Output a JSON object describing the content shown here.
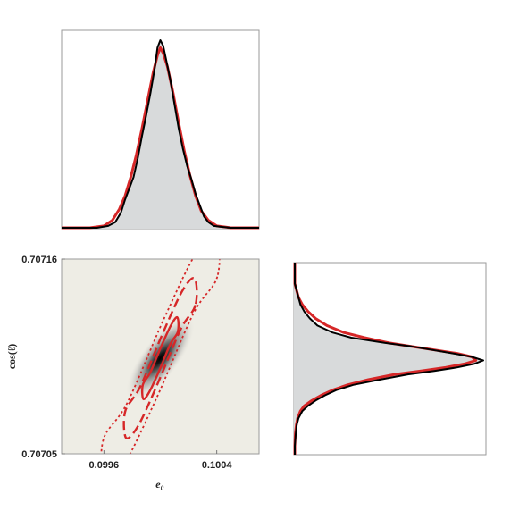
{
  "chart_data": [
    {
      "type": "area",
      "panel": "marginal-e0",
      "x_range": [
        0.0993,
        0.1007
      ],
      "series": [
        {
          "color": "#000000",
          "fill": "#d8dadb",
          "x": [
            0.0993,
            0.09955,
            0.09963,
            0.09968,
            0.09972,
            0.09975,
            0.09978,
            0.09981,
            0.09984,
            0.09987,
            0.0999,
            0.09993,
            0.09996,
            0.09998,
            0.1,
            0.10002,
            0.10004,
            0.10007,
            0.1001,
            0.10013,
            0.10016,
            0.10019,
            0.10022,
            0.10025,
            0.10028,
            0.10031,
            0.10034,
            0.10038,
            0.10043,
            0.1005,
            0.1007
          ],
          "y": [
            0.0,
            0.0,
            0.01,
            0.03,
            0.08,
            0.15,
            0.21,
            0.27,
            0.37,
            0.49,
            0.6,
            0.72,
            0.85,
            0.96,
            1.0,
            0.97,
            0.9,
            0.79,
            0.66,
            0.53,
            0.42,
            0.33,
            0.26,
            0.18,
            0.12,
            0.06,
            0.03,
            0.01,
            0.005,
            0.0,
            0.0
          ]
        },
        {
          "color": "#d62728",
          "x": [
            0.0993,
            0.0995,
            0.0996,
            0.09966,
            0.09971,
            0.09975,
            0.09979,
            0.09983,
            0.09987,
            0.09991,
            0.09995,
            0.09998,
            0.1,
            0.10002,
            0.10005,
            0.10009,
            0.10013,
            0.10017,
            0.10021,
            0.10025,
            0.10029,
            0.10034,
            0.1004,
            0.1005,
            0.1007
          ],
          "y": [
            0.0,
            0.0,
            0.01,
            0.04,
            0.1,
            0.17,
            0.27,
            0.39,
            0.53,
            0.68,
            0.83,
            0.92,
            0.96,
            0.93,
            0.86,
            0.72,
            0.56,
            0.41,
            0.28,
            0.17,
            0.09,
            0.04,
            0.01,
            0.0,
            0.0
          ]
        }
      ]
    },
    {
      "type": "heatmap",
      "panel": "joint-e0-cos",
      "xlabel": "e₀",
      "ylabel": "cos(ℓ)",
      "x_ticks": [
        "0.0996",
        "0.1004"
      ],
      "x_tick_values": [
        0.0996,
        0.1004
      ],
      "y_ticks": [
        "0.70716",
        "0.70705"
      ],
      "y_tick_values": [
        0.70716,
        0.70705
      ],
      "x_range": [
        0.0993,
        0.1007
      ],
      "y_range": [
        0.70705,
        0.70716
      ],
      "center": [
        0.1,
        0.707104
      ],
      "colors": {
        "background": "#eeede5",
        "peak": "#000000",
        "contours": "#d62728"
      },
      "contours": [
        {
          "level": "1-sigma",
          "style": "solid",
          "points": [
            [
              0.100124,
              0.707119
            ],
            [
              0.100071,
              0.707112
            ],
            [
              0.099992,
              0.707097
            ],
            [
              0.099922,
              0.707085
            ],
            [
              0.099879,
              0.707081
            ],
            [
              0.099876,
              0.707089
            ],
            [
              0.099929,
              0.707096
            ],
            [
              0.100008,
              0.707111
            ],
            [
              0.100078,
              0.707123
            ],
            [
              0.100121,
              0.707127
            ]
          ]
        },
        {
          "level": "2-sigma",
          "style": "dashed",
          "points": [
            [
              0.100249,
              0.707134
            ],
            [
              0.100142,
              0.70712
            ],
            [
              0.099983,
              0.70709
            ],
            [
              0.099844,
              0.707066
            ],
            [
              0.099757,
              0.707059
            ],
            [
              0.099751,
              0.707074
            ],
            [
              0.099858,
              0.707088
            ],
            [
              0.100017,
              0.707118
            ],
            [
              0.100156,
              0.707142
            ],
            [
              0.100243,
              0.707149
            ]
          ]
        },
        {
          "level": "3-sigma",
          "style": "dotted",
          "points": [
            [
              0.100404,
              0.70715
            ],
            [
              0.100233,
              0.707129
            ],
            [
              0.09997,
              0.707081
            ],
            [
              0.099743,
              0.707044
            ],
            [
              0.099602,
              0.707034
            ],
            [
              0.099596,
              0.707058
            ],
            [
              0.099767,
              0.707079
            ],
            [
              0.10003,
              0.707127
            ],
            [
              0.100257,
              0.707164
            ],
            [
              0.100398,
              0.707174
            ]
          ]
        }
      ]
    },
    {
      "type": "area",
      "panel": "marginal-cos",
      "orientation": "horizontal",
      "y_range": [
        0.70705,
        0.70716
      ],
      "series": [
        {
          "color": "#000000",
          "fill": "#d8dadb",
          "y": [
            0.70716,
            0.707148,
            0.707144,
            0.70714,
            0.707136,
            0.707132,
            0.707128,
            0.707124,
            0.70712,
            0.707117,
            0.707114,
            0.707112,
            0.70711,
            0.707108,
            0.707106,
            0.707104,
            0.707102,
            0.7071,
            0.707098,
            0.707096,
            0.707093,
            0.70709,
            0.707087,
            0.707084,
            0.707081,
            0.707078,
            0.707075,
            0.707071,
            0.707067,
            0.707062,
            0.707055,
            0.70705
          ],
          "x": [
            0.0,
            0.0,
            0.01,
            0.02,
            0.03,
            0.05,
            0.08,
            0.12,
            0.2,
            0.3,
            0.48,
            0.62,
            0.73,
            0.84,
            0.94,
            1.0,
            0.95,
            0.86,
            0.74,
            0.6,
            0.45,
            0.31,
            0.22,
            0.16,
            0.11,
            0.07,
            0.04,
            0.02,
            0.01,
            0.005,
            0.0,
            0.0
          ]
        },
        {
          "color": "#d62728",
          "y": [
            0.70716,
            0.707148,
            0.707144,
            0.70714,
            0.707136,
            0.707132,
            0.707128,
            0.707124,
            0.70712,
            0.707117,
            0.707114,
            0.707112,
            0.70711,
            0.707108,
            0.707106,
            0.707104,
            0.707102,
            0.7071,
            0.707098,
            0.707096,
            0.707093,
            0.70709,
            0.707087,
            0.707084,
            0.707081,
            0.707078,
            0.707075,
            0.707071,
            0.707067,
            0.707062,
            0.707055,
            0.70705
          ],
          "x": [
            0.0,
            0.0,
            0.01,
            0.02,
            0.04,
            0.07,
            0.11,
            0.17,
            0.26,
            0.37,
            0.5,
            0.62,
            0.74,
            0.86,
            0.94,
            0.96,
            0.9,
            0.8,
            0.67,
            0.53,
            0.39,
            0.28,
            0.2,
            0.14,
            0.09,
            0.05,
            0.03,
            0.015,
            0.008,
            0.003,
            0.0,
            0.0
          ]
        }
      ]
    }
  ]
}
